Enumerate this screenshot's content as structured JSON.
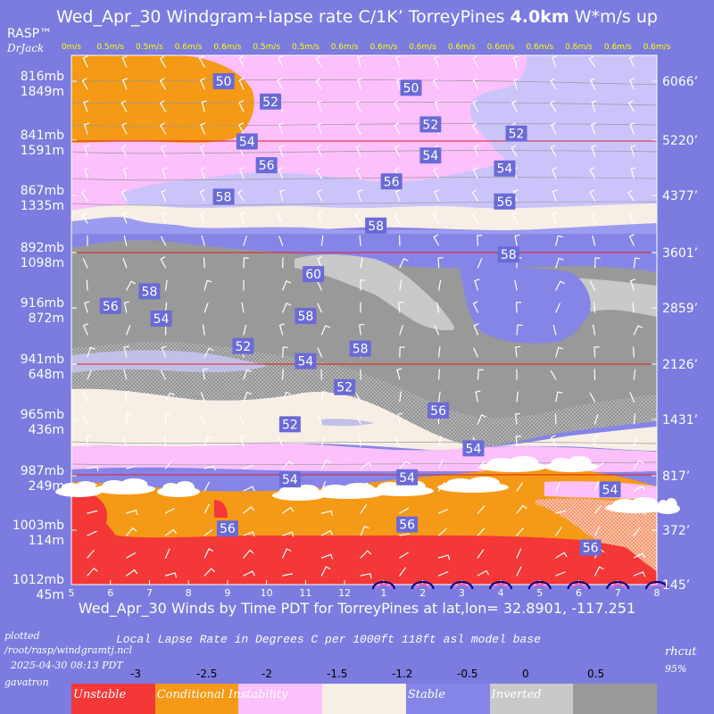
{
  "header": {
    "title_prefix": "Wed_Apr_30 Windgram+lapse rate C/1K’  TorreyPines ",
    "title_bold": "4.0km",
    "title_suffix": "  W*m/s up",
    "brand": "RASP™",
    "author": "DrJack"
  },
  "subtitle": "Wed_Apr_30 Winds by Time PDT for TorreyPines at lat,lon= 32.8901, -117.251",
  "footer": {
    "plotted_line1": "plotted",
    "plotted_line2": "/root/rasp/windgramtj.ncl",
    "plotted_line3": "2025-04-30 08:13 PDT",
    "host": "gavatron",
    "lapse_caption": "Local Lapse Rate in Degrees C per 1000ft  118ft asl model base",
    "rhcut": "rhcut",
    "rhcut_value": "95%"
  },
  "legend": {
    "ticks": [
      "-3",
      "-2.5",
      "-2",
      "-1.5",
      "-1.2",
      "-0.5",
      "0",
      "0.5"
    ],
    "segments": [
      {
        "color": "#f43838",
        "label": "Unstable"
      },
      {
        "color": "#f59a17",
        "label": "Conditional Instability"
      },
      {
        "color": "#fcc0fc",
        "label": ""
      },
      {
        "color": "#f7efe5",
        "label": ""
      },
      {
        "color": "#8585e8",
        "label": "Stable"
      },
      {
        "color": "#c9c9c9",
        "label": "Inverted"
      },
      {
        "color": "#999999",
        "label": ""
      }
    ]
  },
  "chart_data": {
    "type": "windgram",
    "x_ticks": [
      "5",
      "6",
      "7",
      "8",
      "9",
      "10",
      "11",
      "12",
      "1",
      "2",
      "3",
      "4",
      "5",
      "6",
      "7",
      "8"
    ],
    "w_star_row": [
      "0m/s",
      "0.5m/s",
      "0.5m/s",
      "0.6m/s",
      "0.6m/s",
      "0.5m/s",
      "0.5m/s",
      "0.6m/s",
      "0.6m/s",
      "0.6m/s",
      "0.6m/s",
      "0.6m/s",
      "0.6m/s",
      "0.6m/s",
      "0.6m/s",
      "0.6m/s"
    ],
    "left_axis": [
      {
        "mb": "816mb",
        "m": "1849m"
      },
      {
        "mb": "841mb",
        "m": "1591m"
      },
      {
        "mb": "867mb",
        "m": "1335m"
      },
      {
        "mb": "892mb",
        "m": "1098m"
      },
      {
        "mb": "916mb",
        "m": "872m"
      },
      {
        "mb": "941mb",
        "m": "648m"
      },
      {
        "mb": "965mb",
        "m": "436m"
      },
      {
        "mb": "987mb",
        "m": "249m"
      },
      {
        "mb": "1003mb",
        "m": "114m"
      },
      {
        "mb": "1012mb",
        "m": "45m"
      }
    ],
    "right_axis": [
      "6066’",
      "5220’",
      "4377’",
      "3601’",
      "2859’",
      "2126’",
      "1431’",
      "817’",
      "372’",
      "145’"
    ],
    "isotherm_labels": [
      {
        "text": "50",
        "x": 8.9,
        "y": 1849
      },
      {
        "text": "52",
        "x": 10.1,
        "y": 1760
      },
      {
        "text": "54",
        "x": 9.5,
        "y": 1585
      },
      {
        "text": "56",
        "x": 10.0,
        "y": 1475
      },
      {
        "text": "58",
        "x": 8.9,
        "y": 1330
      },
      {
        "text": "50",
        "x": 13.7,
        "y": 1820
      },
      {
        "text": "52",
        "x": 14.2,
        "y": 1660
      },
      {
        "text": "54",
        "x": 14.2,
        "y": 1520
      },
      {
        "text": "56",
        "x": 13.2,
        "y": 1400
      },
      {
        "text": "58",
        "x": 12.8,
        "y": 1210
      },
      {
        "text": "52",
        "x": 16.4,
        "y": 1620
      },
      {
        "text": "54",
        "x": 16.1,
        "y": 1460
      },
      {
        "text": "56",
        "x": 16.1,
        "y": 1310
      },
      {
        "text": "58",
        "x": 16.2,
        "y": 1090
      },
      {
        "text": "60",
        "x": 11.2,
        "y": 1010
      },
      {
        "text": "58",
        "x": 7.0,
        "y": 940
      },
      {
        "text": "56",
        "x": 6.0,
        "y": 880
      },
      {
        "text": "54",
        "x": 7.3,
        "y": 830
      },
      {
        "text": "52",
        "x": 9.4,
        "y": 720
      },
      {
        "text": "58",
        "x": 11.0,
        "y": 840
      },
      {
        "text": "54",
        "x": 11.0,
        "y": 660
      },
      {
        "text": "58",
        "x": 12.4,
        "y": 710
      },
      {
        "text": "52",
        "x": 12.0,
        "y": 560
      },
      {
        "text": "52",
        "x": 10.6,
        "y": 420
      },
      {
        "text": "56",
        "x": 14.4,
        "y": 470
      },
      {
        "text": "54",
        "x": 15.3,
        "y": 340
      },
      {
        "text": "54",
        "x": 10.6,
        "y": 240
      },
      {
        "text": "54",
        "x": 13.6,
        "y": 245
      },
      {
        "text": "54",
        "x": 18.8,
        "y": 215
      },
      {
        "text": "56",
        "x": 9.0,
        "y": 118
      },
      {
        "text": "56",
        "x": 13.6,
        "y": 128
      },
      {
        "text": "56",
        "x": 18.3,
        "y": 92
      }
    ],
    "colors": {
      "unstable": "#f43838",
      "conditional": "#f59a17",
      "pink": "#fcc0fc",
      "cream": "#f7efe5",
      "stable": "#8585e8",
      "inverted_light": "#c9c9c9",
      "inverted_dark": "#999999",
      "background": "#7b7be0"
    }
  }
}
